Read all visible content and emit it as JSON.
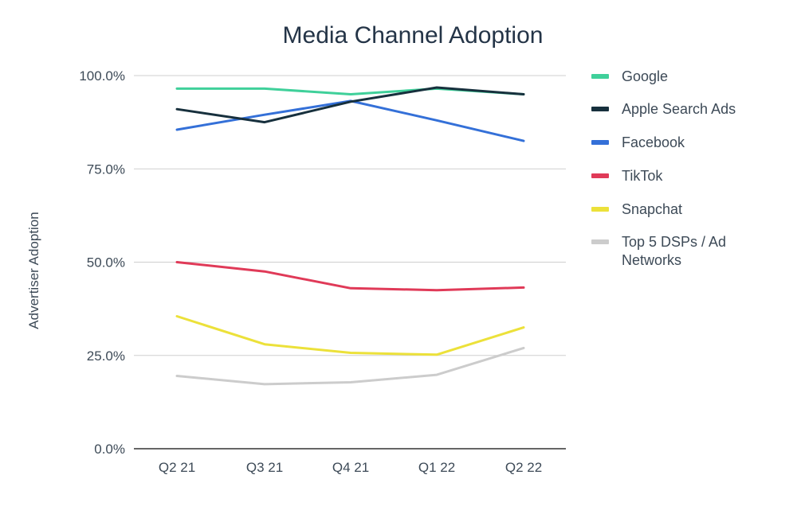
{
  "chart_data": {
    "type": "line",
    "title": "Media Channel Adoption",
    "xlabel": "",
    "ylabel": "Advertiser Adoption",
    "categories": [
      "Q2 21",
      "Q3 21",
      "Q4 21",
      "Q1 22",
      "Q2 22"
    ],
    "ylim": [
      0,
      100
    ],
    "yticks": [
      {
        "value": 0,
        "label": "0.0%"
      },
      {
        "value": 25,
        "label": "25.0%"
      },
      {
        "value": 50,
        "label": "50.0%"
      },
      {
        "value": 75,
        "label": "75.0%"
      },
      {
        "value": 100,
        "label": "100.0%"
      }
    ],
    "grid": true,
    "legend_position": "right",
    "series": [
      {
        "name": "Google",
        "color": "#3fd09a",
        "values": [
          96.5,
          96.5,
          95,
          96.5,
          95
        ]
      },
      {
        "name": "Apple Search Ads",
        "color": "#17303d",
        "values": [
          91,
          87.5,
          93,
          96.8,
          95
        ]
      },
      {
        "name": "Facebook",
        "color": "#3470d8",
        "values": [
          85.5,
          89.5,
          93.2,
          88,
          82.5
        ]
      },
      {
        "name": "TikTok",
        "color": "#e03a58",
        "values": [
          50,
          47.5,
          43,
          42.5,
          43.2
        ]
      },
      {
        "name": "Snapchat",
        "color": "#ece13a",
        "values": [
          35.5,
          28,
          25.7,
          25.2,
          32.5
        ]
      },
      {
        "name": "Top 5 DSPs / Ad Networks",
        "color": "#cccccc",
        "values": [
          19.5,
          17.3,
          17.8,
          19.8,
          27
        ]
      }
    ]
  }
}
